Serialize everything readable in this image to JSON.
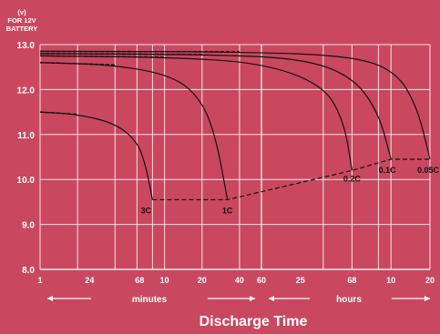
{
  "chart_data": {
    "type": "line",
    "xlabel": "Discharge Time",
    "ylabel_unit": "(v)",
    "ylabel_lines": [
      "FOR 12V",
      "BATTERY"
    ],
    "ylim": [
      8.0,
      13.0
    ],
    "y_ticks": [
      "13.0",
      "12.0",
      "11.0",
      "10.0",
      "9.0",
      "8.0"
    ],
    "x_ticks": [
      "1",
      "24",
      "68",
      "10",
      "20",
      "40",
      "60",
      "25",
      "68",
      "10",
      "20"
    ],
    "x_segments": [
      "minutes",
      "hours"
    ],
    "grid": true,
    "series": [
      {
        "name": "3C",
        "x_minutes": [
          1,
          2,
          4,
          6,
          7,
          8
        ],
        "y": [
          11.5,
          11.45,
          11.25,
          10.85,
          10.35,
          9.55
        ]
      },
      {
        "name": "1C",
        "x_minutes": [
          1,
          4,
          12,
          20,
          26,
          32
        ],
        "y": [
          12.6,
          12.55,
          12.3,
          11.75,
          10.9,
          9.55
        ]
      },
      {
        "name": "0.2C",
        "x_minutes": [
          1,
          10,
          60,
          180,
          260,
          300
        ],
        "y": [
          12.75,
          12.72,
          12.6,
          12.1,
          11.3,
          10.2
        ]
      },
      {
        "name": "0.1C",
        "x_minutes": [
          1,
          20,
          120,
          300,
          480,
          600
        ],
        "y": [
          12.8,
          12.78,
          12.7,
          12.3,
          11.5,
          10.45
        ]
      },
      {
        "name": "0.05C",
        "x_minutes": [
          1,
          40,
          300,
          660,
          960,
          1200
        ],
        "y": [
          12.85,
          12.84,
          12.75,
          12.4,
          11.6,
          10.45
        ]
      }
    ],
    "cutoff_points": {
      "x_minutes": [
        8,
        32,
        300,
        600,
        1200
      ],
      "y": [
        9.55,
        9.55,
        10.2,
        10.45,
        10.45
      ]
    }
  }
}
